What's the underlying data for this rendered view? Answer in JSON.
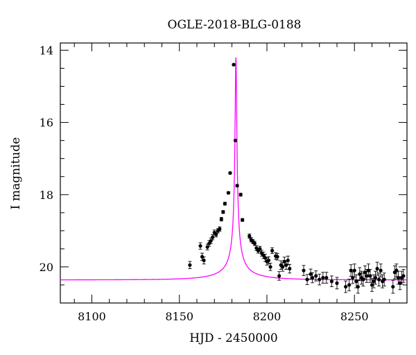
{
  "chart_data": {
    "type": "scatter",
    "title": "OGLE-2018-BLG-0188",
    "xlabel": "HJD - 2450000",
    "ylabel": "I magnitude",
    "xlim": [
      8082,
      8280
    ],
    "ylim": [
      21.0,
      13.8
    ],
    "y_inverted": true,
    "x_ticks": [
      8100,
      8150,
      8200,
      8250
    ],
    "y_ticks": [
      14,
      16,
      18,
      20
    ],
    "colors": {
      "data": "#000000",
      "model": "#ff00ff"
    },
    "model": {
      "t0": 8182.3,
      "baseline": 20.36,
      "peak": 14.2,
      "u0": 0.016,
      "tE": 30
    },
    "series": [
      {
        "x": [
          8156,
          8162,
          8163,
          8164,
          8166,
          8167,
          8168,
          8169,
          8170,
          8171,
          8172,
          8173,
          8174,
          8175,
          8176,
          8178,
          8179,
          8181,
          8182,
          8183,
          8185,
          8186,
          8190,
          8191,
          8192,
          8193,
          8194,
          8195,
          8196,
          8197,
          8198,
          8199,
          8200,
          8201,
          8202,
          8203,
          8205,
          8206,
          8207,
          8208,
          8209,
          8210,
          8211,
          8212,
          8213,
          8221,
          8223,
          8225,
          8226,
          8228,
          8230,
          8232,
          8234,
          8237,
          8240,
          8245,
          8247,
          8248,
          8249,
          8250,
          8251,
          8252,
          8253,
          8254,
          8255,
          8256,
          8257,
          8258,
          8259,
          8260,
          8261,
          8262,
          8263,
          8264,
          8265,
          8266,
          8267,
          8272,
          8273,
          8274,
          8275,
          8276,
          8277,
          8278
        ],
        "y": [
          19.95,
          19.42,
          19.72,
          19.82,
          19.45,
          19.35,
          19.28,
          19.18,
          19.05,
          19.1,
          19.0,
          18.95,
          18.68,
          18.48,
          18.25,
          17.95,
          17.4,
          14.4,
          16.5,
          17.75,
          18.0,
          18.7,
          19.15,
          19.25,
          19.3,
          19.35,
          19.48,
          19.55,
          19.5,
          19.62,
          19.68,
          19.75,
          19.85,
          19.82,
          20.0,
          19.55,
          19.7,
          19.72,
          20.25,
          19.95,
          20.0,
          19.85,
          19.95,
          19.82,
          20.05,
          20.1,
          20.35,
          20.2,
          20.3,
          20.25,
          20.35,
          20.3,
          20.3,
          20.4,
          20.45,
          20.55,
          20.5,
          20.1,
          20.3,
          20.1,
          20.4,
          20.55,
          20.2,
          20.3,
          20.35,
          20.15,
          20.25,
          20.1,
          20.25,
          20.5,
          20.4,
          20.3,
          20.05,
          20.35,
          20.1,
          20.4,
          20.35,
          20.55,
          20.15,
          20.1,
          20.3,
          20.45,
          20.3,
          20.25
        ],
        "err": [
          0.1,
          0.09,
          0.1,
          0.1,
          0.08,
          0.08,
          0.08,
          0.07,
          0.07,
          0.07,
          0.06,
          0.06,
          0.05,
          0.04,
          0.04,
          0.03,
          0.03,
          0.02,
          0.02,
          0.03,
          0.04,
          0.04,
          0.06,
          0.06,
          0.06,
          0.06,
          0.07,
          0.07,
          0.07,
          0.08,
          0.09,
          0.1,
          0.1,
          0.1,
          0.1,
          0.08,
          0.09,
          0.09,
          0.12,
          0.12,
          0.12,
          0.12,
          0.12,
          0.12,
          0.12,
          0.14,
          0.14,
          0.14,
          0.14,
          0.14,
          0.15,
          0.15,
          0.15,
          0.15,
          0.16,
          0.16,
          0.16,
          0.16,
          0.16,
          0.18,
          0.18,
          0.18,
          0.18,
          0.18,
          0.18,
          0.18,
          0.18,
          0.18,
          0.18,
          0.18,
          0.18,
          0.18,
          0.18,
          0.18,
          0.18,
          0.18,
          0.18,
          0.18,
          0.18,
          0.18,
          0.18,
          0.18,
          0.18,
          0.18
        ]
      }
    ]
  }
}
